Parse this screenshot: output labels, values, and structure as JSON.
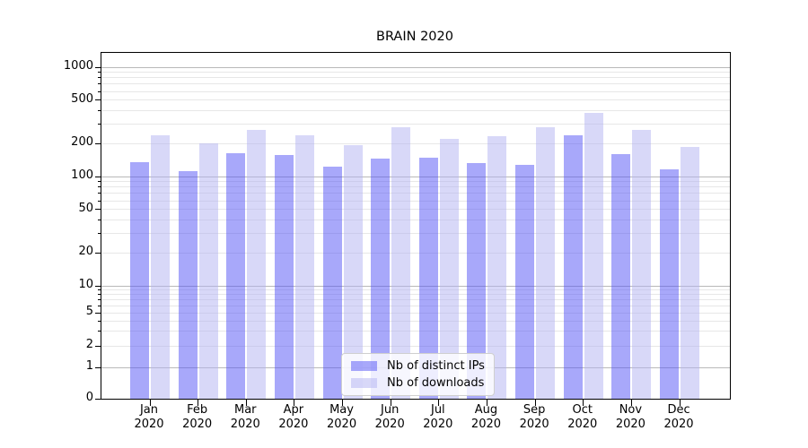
{
  "figure_title": "BRAIN 2020",
  "chart_data": {
    "type": "bar",
    "title": "BRAIN 2020",
    "categories": [
      "Jan",
      "Feb",
      "Mar",
      "Apr",
      "May",
      "Jun",
      "Jul",
      "Aug",
      "Sep",
      "Oct",
      "Nov",
      "Dec"
    ],
    "x_tick_year": "2020",
    "xlabel": "",
    "ylabel": "",
    "series": [
      {
        "name": "Nb of distinct IPs",
        "color": "rgba(81,81,245,0.5)",
        "legend_color": "#a8a8fa",
        "values": [
          135,
          112,
          163,
          157,
          123,
          145,
          148,
          132,
          127,
          240,
          161,
          116
        ]
      },
      {
        "name": "Nb of downloads",
        "color": "rgba(177,177,241,0.5)",
        "legend_color": "#d8d8f8",
        "values": [
          240,
          200,
          265,
          240,
          193,
          280,
          222,
          235,
          285,
          380,
          265,
          185
        ]
      }
    ],
    "y_axis": {
      "scale": "symlog",
      "ticks_labeled": [
        0,
        1,
        2,
        5,
        10,
        20,
        50,
        100,
        200,
        500,
        1000
      ],
      "ticks_minor": [
        3,
        4,
        6,
        7,
        8,
        9,
        30,
        40,
        60,
        70,
        80,
        90,
        300,
        400,
        600,
        700,
        800,
        900
      ],
      "major_grid_values": [
        1,
        10,
        100,
        1000
      ],
      "ylim": [
        0,
        1350
      ]
    },
    "grid": true,
    "legend_position": "lower center"
  }
}
